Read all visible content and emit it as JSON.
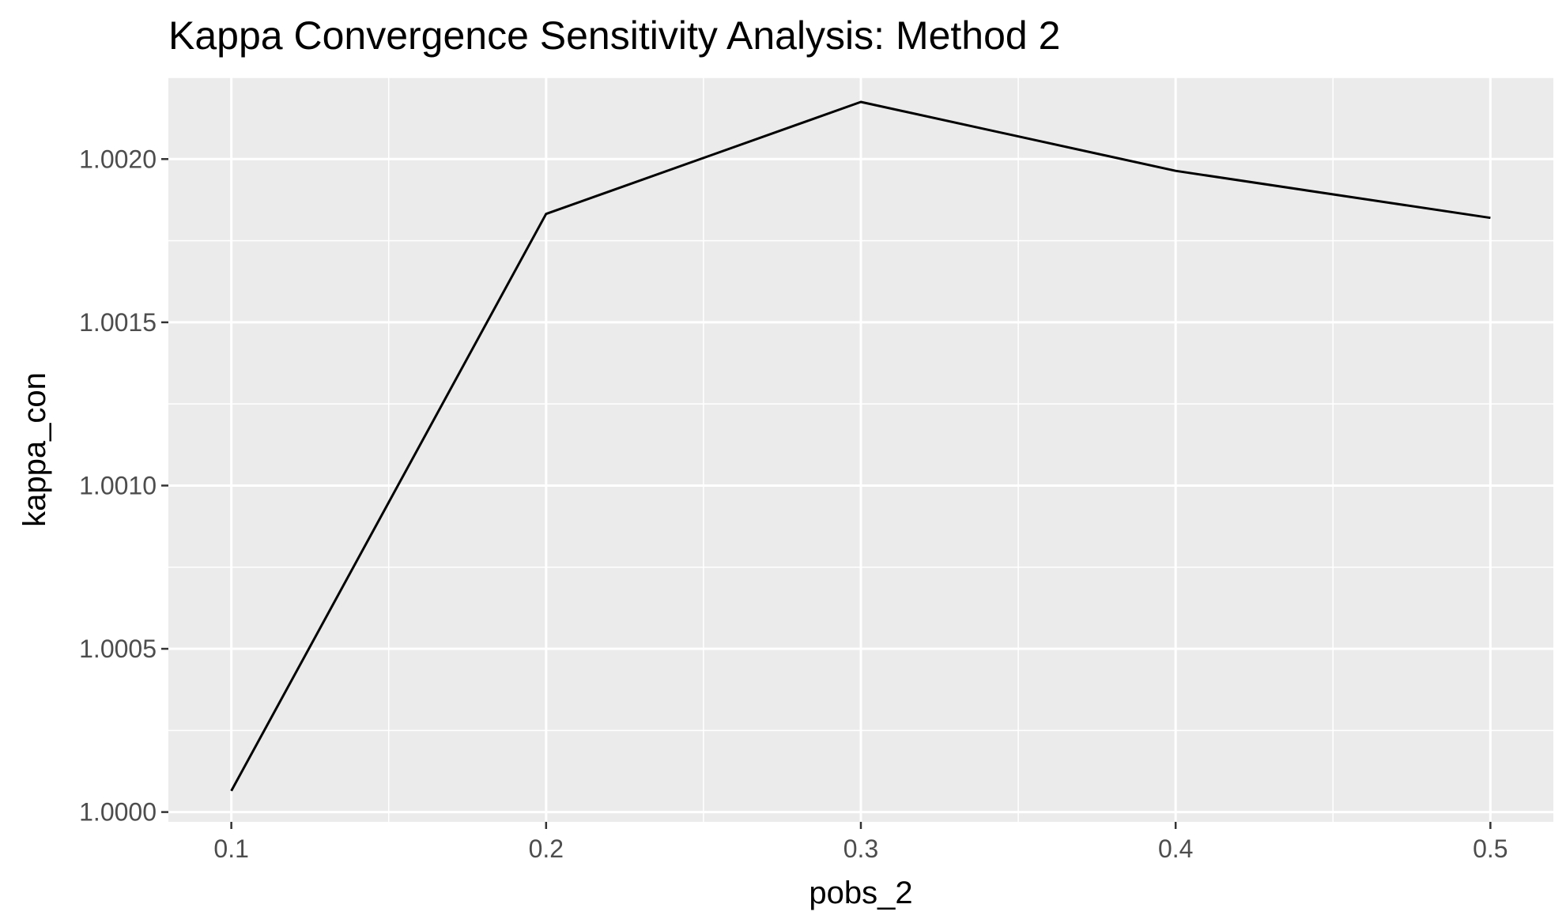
{
  "chart_data": {
    "type": "line",
    "title": "Kappa Convergence Sensitivity Analysis: Method 2",
    "xlabel": "pobs_2",
    "ylabel": "kappa_con",
    "x": [
      0.1,
      0.2,
      0.3,
      0.4,
      0.5
    ],
    "series": [
      {
        "values": [
          1.000065,
          1.001832,
          1.002175,
          1.001964,
          1.00182
        ]
      }
    ],
    "xlim": [
      0.08,
      0.52
    ],
    "ylim": [
      0.99997,
      1.00225
    ],
    "x_ticks": [
      "0.1",
      "0.2",
      "0.3",
      "0.4",
      "0.5"
    ],
    "y_ticks": [
      "1.0000",
      "1.0005",
      "1.0010",
      "1.0015",
      "1.0020"
    ],
    "grid": true,
    "legend": "none",
    "colors": {
      "panel_background": "#ebebeb",
      "grid": "#ffffff",
      "line": "#000000",
      "tick_text": "#4d4d4d"
    }
  }
}
